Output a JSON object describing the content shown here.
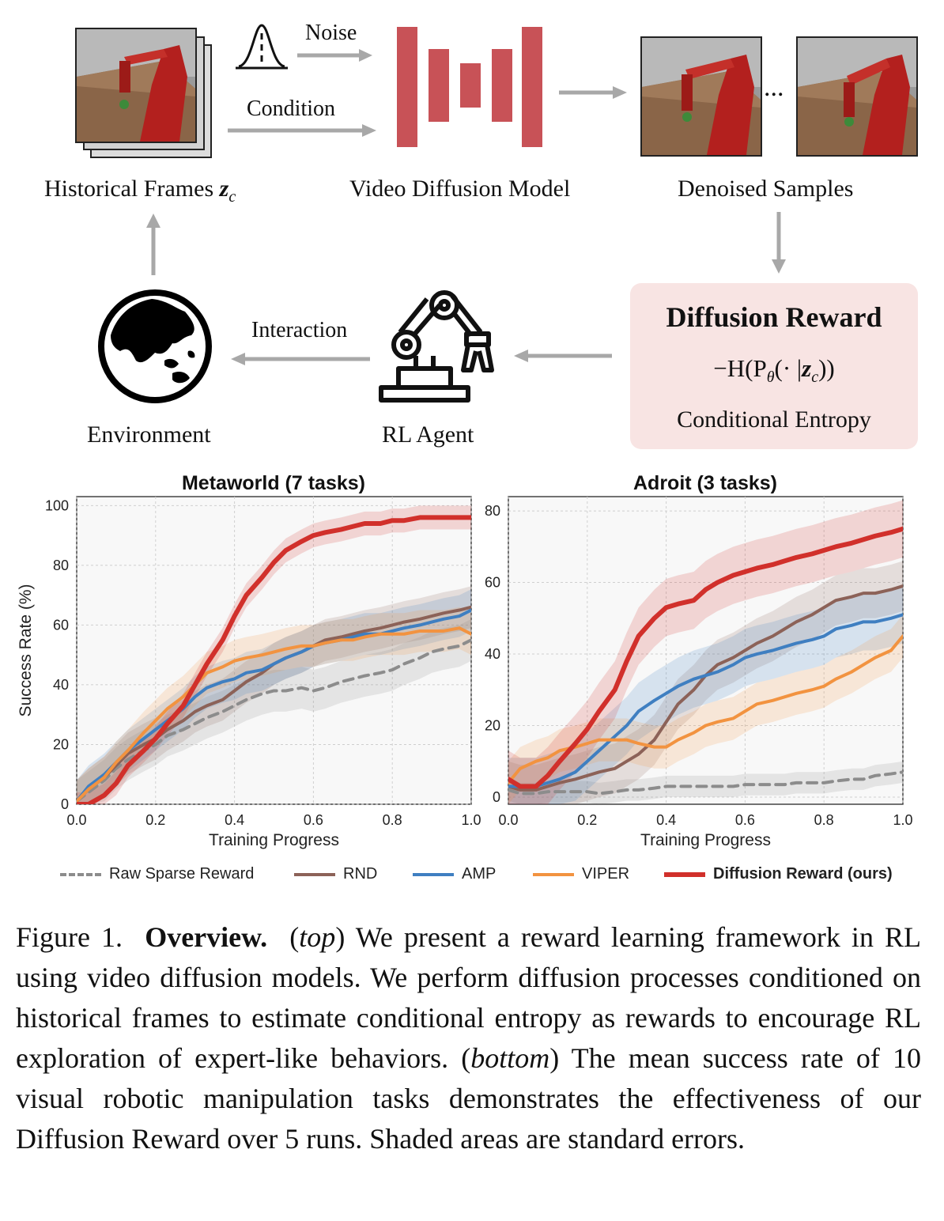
{
  "diagram": {
    "noise_label": "Noise",
    "condition_label": "Condition",
    "historical_frames_label": "Historical Frames",
    "historical_frames_symbol": "z",
    "historical_frames_subscript": "c",
    "video_diffusion_label": "Video Diffusion Model",
    "denoised_samples_label": "Denoised Samples",
    "ellipsis": "...",
    "reward_title": "Diffusion Reward",
    "reward_formula_prefix": "−H(P",
    "reward_formula_theta": "θ",
    "reward_formula_mid": "(· |",
    "reward_formula_z": "z",
    "reward_formula_sub": "c",
    "reward_formula_suffix": "))",
    "reward_subtitle": "Conditional Entropy",
    "interaction_label": "Interaction",
    "environment_label": "Environment",
    "agent_label": "RL Agent",
    "colors": {
      "arrow": "#a8a8a8",
      "unet": "#c85257",
      "reward_bg": "#f8e4e3"
    },
    "icons": [
      "gaussian-icon",
      "globe-icon",
      "robot-arm-icon",
      "robot-frame-image"
    ]
  },
  "legend": [
    {
      "label": "Raw Sparse Reward",
      "color": "#8c8c8c",
      "style": "dashed",
      "bold": false
    },
    {
      "label": "RND",
      "color": "#8c6258",
      "style": "solid",
      "bold": false
    },
    {
      "label": "AMP",
      "color": "#3f7fc1",
      "style": "solid",
      "bold": false
    },
    {
      "label": "VIPER",
      "color": "#f29340",
      "style": "solid",
      "bold": false
    },
    {
      "label": "Diffusion Reward (ours)",
      "color": "#d1302b",
      "style": "solid",
      "bold": true
    }
  ],
  "chart_data": [
    {
      "type": "line",
      "title": "Metaworld (7 tasks)",
      "xlabel": "Training Progress",
      "ylabel": "Success Rate (%)",
      "xlim": [
        0,
        1
      ],
      "ylim": [
        0,
        103
      ],
      "xticks": [
        "0.0",
        "0.2",
        "0.4",
        "0.6",
        "0.8",
        "1.0"
      ],
      "yticks": [
        "0",
        "20",
        "40",
        "60",
        "80",
        "100"
      ],
      "grid": true,
      "x": [
        0,
        0.03,
        0.07,
        0.1,
        0.13,
        0.17,
        0.2,
        0.23,
        0.27,
        0.3,
        0.33,
        0.37,
        0.4,
        0.43,
        0.47,
        0.5,
        0.53,
        0.57,
        0.6,
        0.63,
        0.67,
        0.7,
        0.73,
        0.77,
        0.8,
        0.83,
        0.87,
        0.9,
        0.93,
        0.97,
        1.0
      ],
      "series": [
        {
          "name": "Raw Sparse Reward",
          "color": "#8c8c8c",
          "dash": true,
          "band": 7,
          "values": [
            1,
            4,
            8,
            12,
            15,
            18,
            20,
            23,
            25,
            27,
            29,
            31,
            33,
            35,
            37,
            38,
            38,
            39,
            38,
            39,
            41,
            42,
            43,
            44,
            45,
            47,
            49,
            51,
            52,
            53,
            55
          ]
        },
        {
          "name": "RND",
          "color": "#8c6258",
          "dash": false,
          "band": 7,
          "values": [
            1,
            5,
            9,
            13,
            17,
            20,
            22,
            25,
            28,
            31,
            33,
            35,
            38,
            41,
            44,
            47,
            49,
            51,
            53,
            55,
            56,
            57,
            58,
            59,
            60,
            61,
            62,
            63,
            64,
            65,
            66
          ]
        },
        {
          "name": "AMP",
          "color": "#3f7fc1",
          "dash": false,
          "band": 7,
          "values": [
            1,
            6,
            10,
            14,
            18,
            22,
            25,
            28,
            32,
            36,
            39,
            41,
            42,
            44,
            45,
            47,
            49,
            51,
            53,
            54,
            55,
            56,
            57,
            57,
            58,
            59,
            60,
            61,
            62,
            63,
            65
          ]
        },
        {
          "name": "VIPER",
          "color": "#f29340",
          "dash": false,
          "band": 7,
          "values": [
            1,
            5,
            9,
            14,
            18,
            24,
            28,
            32,
            36,
            40,
            44,
            46,
            48,
            49,
            50,
            51,
            52,
            53,
            53,
            54,
            55,
            55,
            56,
            57,
            57,
            57,
            58,
            58,
            58,
            59,
            57
          ]
        },
        {
          "name": "Diffusion Reward (ours)",
          "color": "#d1302b",
          "dash": false,
          "band": 4,
          "values": [
            0,
            0,
            3,
            7,
            13,
            18,
            22,
            27,
            33,
            40,
            47,
            55,
            63,
            70,
            76,
            81,
            85,
            88,
            90,
            91,
            92,
            93,
            94,
            94,
            95,
            95,
            96,
            96,
            96,
            96,
            96
          ]
        }
      ]
    },
    {
      "type": "line",
      "title": "Adroit (3 tasks)",
      "xlabel": "Training Progress",
      "ylabel": "",
      "xlim": [
        0,
        1
      ],
      "ylim": [
        -2,
        84
      ],
      "xticks": [
        "0.0",
        "0.2",
        "0.4",
        "0.6",
        "0.8",
        "1.0"
      ],
      "yticks": [
        "0",
        "20",
        "40",
        "60",
        "80"
      ],
      "grid": true,
      "x": [
        0,
        0.03,
        0.07,
        0.1,
        0.13,
        0.17,
        0.2,
        0.23,
        0.27,
        0.3,
        0.33,
        0.37,
        0.4,
        0.43,
        0.47,
        0.5,
        0.53,
        0.57,
        0.6,
        0.63,
        0.67,
        0.7,
        0.73,
        0.77,
        0.8,
        0.83,
        0.87,
        0.9,
        0.93,
        0.97,
        1.0
      ],
      "series": [
        {
          "name": "Raw Sparse Reward",
          "color": "#8c8c8c",
          "dash": true,
          "band": 3,
          "values": [
            2,
            1,
            1,
            1.5,
            1.5,
            1.5,
            1.5,
            1,
            1.5,
            2,
            2,
            2.5,
            3,
            3,
            3,
            3,
            3,
            3,
            3.5,
            3.5,
            3.5,
            3.5,
            4,
            4,
            4,
            4.5,
            5,
            5,
            6,
            6.5,
            7
          ]
        },
        {
          "name": "RND",
          "color": "#8c6258",
          "dash": false,
          "band": 7,
          "values": [
            3,
            2,
            2,
            3,
            4,
            5,
            6,
            7,
            8,
            10,
            12,
            16,
            21,
            26,
            30,
            34,
            37,
            39,
            41,
            43,
            45,
            47,
            49,
            51,
            53,
            55,
            56,
            57,
            57,
            58,
            59
          ]
        },
        {
          "name": "AMP",
          "color": "#3f7fc1",
          "dash": false,
          "band": 8,
          "values": [
            3,
            3,
            3,
            4,
            5,
            7,
            10,
            13,
            17,
            20,
            24,
            27,
            29,
            31,
            33,
            34,
            35,
            37,
            39,
            40,
            41,
            42,
            43,
            44,
            45,
            47,
            48,
            49,
            49,
            50,
            51
          ]
        },
        {
          "name": "VIPER",
          "color": "#f29340",
          "dash": false,
          "band": 6,
          "values": [
            4,
            8,
            10,
            11,
            13,
            14,
            15,
            16,
            16,
            16,
            15,
            14,
            14,
            16,
            18,
            20,
            21,
            22,
            24,
            26,
            27,
            28,
            29,
            30,
            31,
            33,
            35,
            37,
            39,
            41,
            45
          ]
        },
        {
          "name": "Diffusion Reward (ours)",
          "color": "#d1302b",
          "dash": false,
          "band": 8,
          "values": [
            5,
            3,
            3,
            6,
            10,
            15,
            19,
            24,
            30,
            38,
            45,
            50,
            53,
            54,
            55,
            58,
            60,
            62,
            63,
            64,
            65,
            66,
            67,
            68,
            69,
            70,
            71,
            72,
            73,
            74,
            75
          ]
        }
      ]
    }
  ],
  "caption": {
    "figure_label": "Figure 1.",
    "bold_title": "Overview.",
    "top_open": "(",
    "top_word": "top",
    "top_close": ")",
    "text1": " We present a reward learning framework in RL using video diffusion models. We perform diffusion processes conditioned on historical frames to estimate conditional entropy as rewards to encourage RL exploration of expert-like behaviors. ",
    "bottom_open": "(",
    "bottom_word": "bottom",
    "bottom_close": ")",
    "text2": " The mean success rate of 10 visual robotic manipulation tasks demonstrates the effectiveness of our Diffusion Reward over 5 runs. Shaded areas are standard errors."
  }
}
